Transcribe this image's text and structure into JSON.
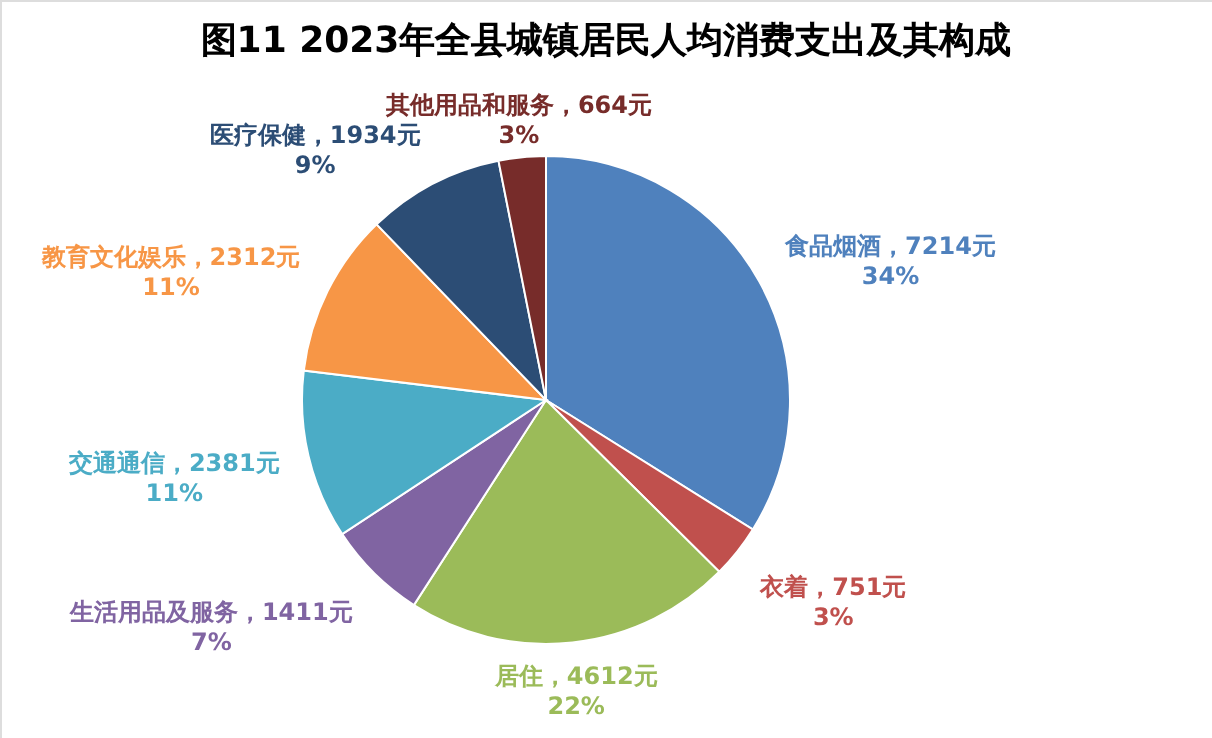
{
  "chart_data": {
    "type": "pie",
    "title": "图11   2023年全县城镇居民人均消费支出及其构成",
    "categories": [
      "食品烟酒",
      "衣着",
      "居住",
      "生活用品及服务",
      "交通通信",
      "教育文化娱乐",
      "医疗保健",
      "其他用品和服务"
    ],
    "values": [
      7214,
      751,
      4612,
      1411,
      2381,
      2312,
      1934,
      664
    ],
    "colors": [
      "#4f81bd",
      "#c0504d",
      "#9bbb59",
      "#8064a2",
      "#4bacc6",
      "#f79646",
      "#2c4d75",
      "#772c2a"
    ],
    "value_labels": [
      "7214元\n34%",
      "751元\n3%",
      "4612元\n22%",
      "1411元\n7%",
      "2381元\n11%",
      "2312元\n11%",
      "1934元\n9%",
      "664元\n3%"
    ]
  }
}
